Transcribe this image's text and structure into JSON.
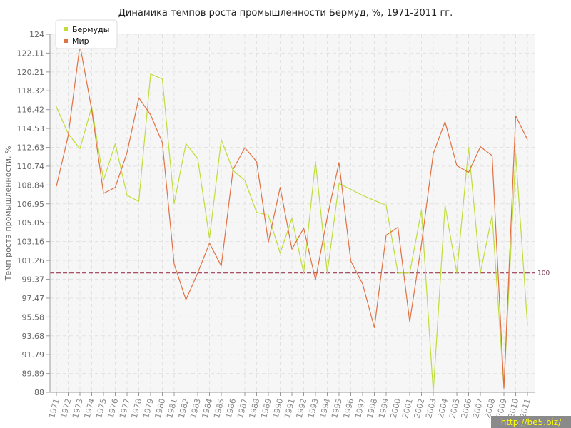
{
  "chart_data": {
    "type": "line",
    "title": "Динамика темпов роста промышленности Бермуд, %, 1971-2011 гг.",
    "xlabel": "",
    "ylabel": "Темп роста промышленности, %",
    "ylim": [
      88,
      124
    ],
    "yticks": [
      "88",
      "89.89",
      "91.79",
      "93.68",
      "95.58",
      "97.47",
      "99.37",
      "101.26",
      "103.16",
      "105.05",
      "106.95",
      "108.84",
      "110.74",
      "112.63",
      "114.53",
      "116.42",
      "118.32",
      "120.21",
      "122.11",
      "124"
    ],
    "categories": [
      "1971",
      "1972",
      "1973",
      "1974",
      "1975",
      "1976",
      "1977",
      "1978",
      "1979",
      "1980",
      "1981",
      "1982",
      "1983",
      "1984",
      "1985",
      "1986",
      "1987",
      "1988",
      "1989",
      "1990",
      "1991",
      "1992",
      "1993",
      "1994",
      "1995",
      "1996",
      "1997",
      "1998",
      "1999",
      "2000",
      "2001",
      "2002",
      "2003",
      "2004",
      "2005",
      "2006",
      "2007",
      "2008",
      "2009",
      "2010",
      "2011"
    ],
    "series": [
      {
        "name": "Бермуды",
        "color": "#bedd3c",
        "values": [
          116.7,
          114.0,
          112.5,
          116.7,
          109.3,
          113.0,
          107.8,
          107.2,
          120.0,
          119.5,
          107.0,
          113.0,
          111.5,
          103.5,
          113.4,
          110.3,
          109.3,
          106.1,
          105.8,
          102.0,
          105.5,
          100.0,
          111.2,
          100.0,
          109.0,
          108.4,
          107.8,
          107.3,
          106.8,
          100.0,
          100.0,
          106.3,
          88.0,
          106.8,
          100.0,
          112.6,
          100.0,
          105.8,
          88.5,
          112.0,
          94.8
        ]
      },
      {
        "name": "Мир",
        "color": "#e07142",
        "values": [
          108.7,
          113.8,
          122.9,
          116.4,
          108.0,
          108.6,
          112.1,
          117.6,
          115.9,
          113.1,
          100.9,
          97.3,
          100.0,
          103.0,
          100.7,
          110.4,
          112.6,
          111.2,
          103.1,
          108.6,
          102.4,
          104.5,
          99.3,
          105.6,
          111.1,
          101.2,
          98.9,
          94.5,
          103.8,
          104.6,
          95.1,
          102.9,
          112.0,
          115.2,
          110.8,
          110.1,
          112.7,
          111.8,
          88.4,
          115.8,
          113.4
        ]
      }
    ],
    "reference_line": {
      "value": 100,
      "label": "100",
      "color": "#9b3b55"
    },
    "legend_position": "top-left",
    "grid": true
  },
  "watermark": "http://be5.biz/"
}
